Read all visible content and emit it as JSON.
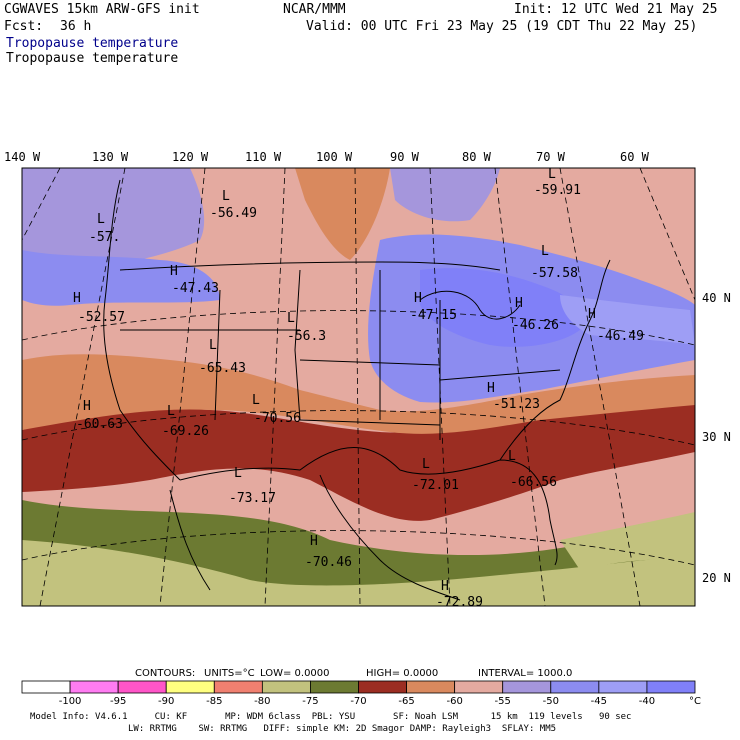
{
  "header": {
    "model": "CGWAVES 15km ARW-GFS init",
    "org": "NCAR/MMM",
    "init": "Init: 12 UTC Wed 21 May 25",
    "fcst_label": "Fcst:",
    "fcst_value": "36 h",
    "valid": "Valid: 00 UTC Fri 23 May 25 (19 CDT Thu 22 May 25)",
    "field_title_1": "Tropopause temperature",
    "field_title_2": "Tropopause temperature"
  },
  "map": {
    "lon_labels": [
      "140 W",
      "130 W",
      "120 W",
      "110 W",
      "100 W",
      "90 W",
      "80 W",
      "70 W",
      "60 W"
    ],
    "lat_labels": [
      "40 N",
      "30 N",
      "20 N"
    ],
    "extrema": [
      {
        "sym": "L",
        "val": "-59.91"
      },
      {
        "sym": "L",
        "val": "-56.49"
      },
      {
        "sym": "L",
        "val": "-57."
      },
      {
        "sym": "H",
        "val": "-47.43"
      },
      {
        "sym": "H",
        "val": "-52.57"
      },
      {
        "sym": "L",
        "val": "-57.58"
      },
      {
        "sym": "H",
        "val": "-47.15"
      },
      {
        "sym": "H",
        "val": "-46.26"
      },
      {
        "sym": "H",
        "val": "-46.49"
      },
      {
        "sym": "L",
        "val": "-56.3"
      },
      {
        "sym": "L",
        "val": "-65.43"
      },
      {
        "sym": "H",
        "val": "-60.63"
      },
      {
        "sym": "L",
        "val": "-69.26"
      },
      {
        "sym": "L",
        "val": "-70.56"
      },
      {
        "sym": "H",
        "val": "-51.23"
      },
      {
        "sym": "L",
        "val": "-73.17"
      },
      {
        "sym": "L",
        "val": "-72.01"
      },
      {
        "sym": "L",
        "val": "-66.56"
      },
      {
        "sym": "H",
        "val": "-70.46"
      },
      {
        "sym": "H",
        "val": "-72.89"
      }
    ]
  },
  "contours": {
    "title": "CONTOURS:",
    "units": "UNITS=°C",
    "low": "LOW=  0.0000",
    "high": "HIGH=  0.0000",
    "interval": "INTERVAL=    1000.0"
  },
  "colorbar": {
    "colors": [
      "#ffffff",
      "#ff7cf2",
      "#ff55c8",
      "#ffff80",
      "#f08070",
      "#c2c27e",
      "#6c7a32",
      "#9b2d22",
      "#d9895e",
      "#e4aaa0",
      "#a596dc",
      "#8c8cf0",
      "#9e9ef5",
      "#8080f8"
    ],
    "labels": [
      "-100",
      "-95",
      "-90",
      "-85",
      "-80",
      "-75",
      "-70",
      "-65",
      "-60",
      "-55",
      "-50",
      "-45",
      "-40"
    ],
    "unit": "°C"
  },
  "footer": {
    "line1": "Model Info: V4.6.1     CU: KF       MP: WDM 6class  PBL: YSU       SF: Noah LSM      15 km  119 levels   90 sec",
    "line2": "LW: RRTMG    SW: RRTMG   DIFF: simple KM: 2D Smagor DAMP: Rayleigh3  SFLAY: MM5"
  }
}
